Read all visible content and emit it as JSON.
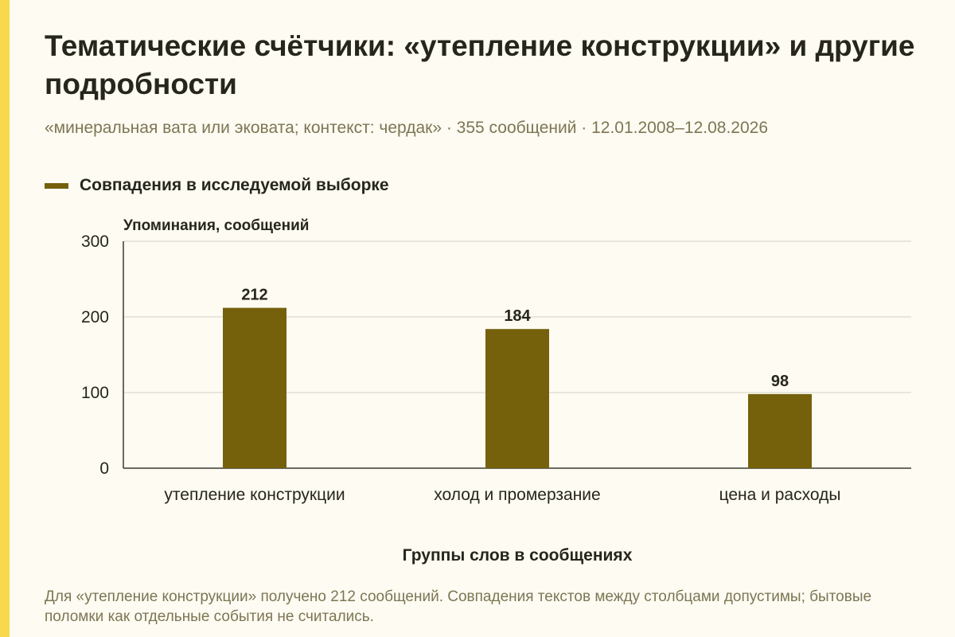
{
  "title": "Тематические счётчики: «утепление конструкции» и другие подробности",
  "subtitle": "«минеральная вата или эковата; контекст: чердак» · 355 сообщений · 12.01.2008–12.08.2026",
  "footnote": "Для «утепление конструкции» получено 212 сообщений. Совпадения текстов между столбцами допустимы; бытовые поломки как отдельные события не считались.",
  "colors": {
    "accent_stripe": "#f9d94c",
    "bar": "#75610c",
    "grid": "#d5d2c4",
    "axis": "#3a3a30",
    "text_dark": "#26261c",
    "text_muted": "#7d7654",
    "background": "#fdfbf2"
  },
  "chart_data": {
    "type": "bar",
    "title": "Тематические счётчики: «утепление конструкции» и другие подробности",
    "categories": [
      "утепление конструкции",
      "холод и промерзание",
      "цена и расходы"
    ],
    "series": [
      {
        "name": "Совпадения в исследуемой выборке",
        "values": [
          212,
          184,
          98
        ]
      }
    ],
    "data_labels": [
      "212",
      "184",
      "98"
    ],
    "xlabel": "Группы слов в сообщениях",
    "ylabel": "Упоминания, сообщений",
    "ylim": [
      0,
      300
    ],
    "yticks": [
      0,
      100,
      200,
      300
    ],
    "grid": true,
    "legend_position": "top-left"
  }
}
